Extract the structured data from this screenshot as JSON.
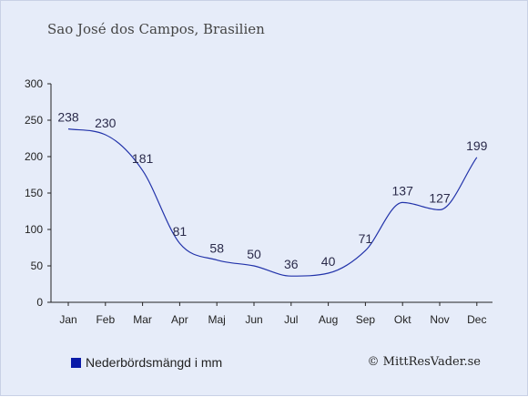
{
  "chart_data": {
    "type": "line",
    "subtitle": "Sao José dos Campos, Brasilien",
    "categories": [
      "Jan",
      "Feb",
      "Mar",
      "Apr",
      "Maj",
      "Jun",
      "Jul",
      "Aug",
      "Sep",
      "Okt",
      "Nov",
      "Dec"
    ],
    "series": [
      {
        "name": "Nederbördsmängd i mm",
        "values": [
          238,
          230,
          181,
          81,
          58,
          50,
          36,
          40,
          71,
          137,
          127,
          199
        ],
        "color": "#2233aa"
      }
    ],
    "ylim": [
      0,
      300
    ],
    "yticks": [
      0,
      50,
      100,
      150,
      200,
      250,
      300
    ],
    "grid": false,
    "legend_position": "bottom-left"
  },
  "credit": "© MittResVader.se",
  "colors": {
    "background": "#e6ecf9",
    "line": "#2233aa",
    "legend_swatch": "#0a1aa8"
  }
}
